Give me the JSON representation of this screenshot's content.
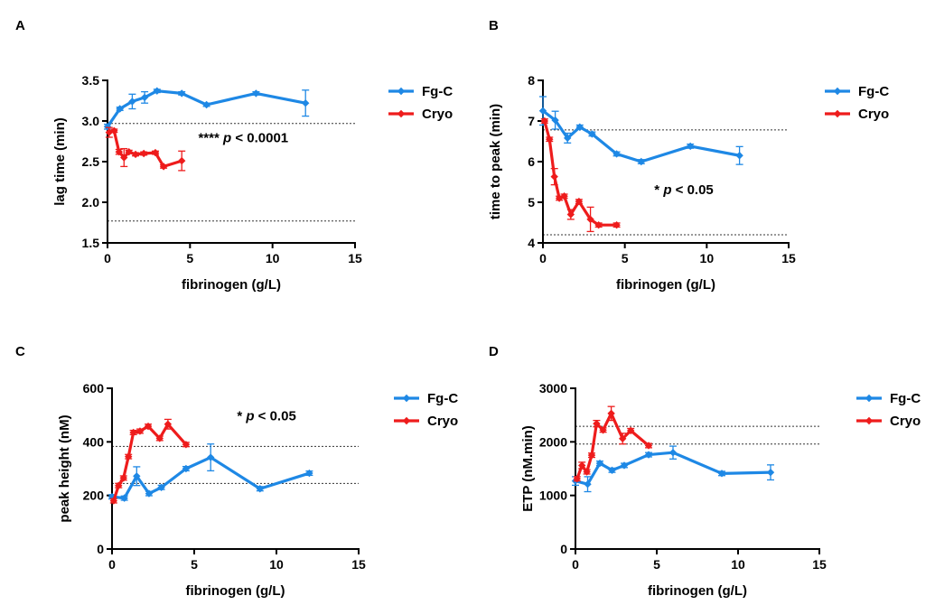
{
  "colors": {
    "fgc": "#1e88e5",
    "cryo": "#ee1c1c"
  },
  "chart_data": [
    {
      "panel": "A",
      "type": "line",
      "xlabel": "fibrinogen (g/L)",
      "ylabel": "lag time (min)",
      "xlim": [
        0,
        15
      ],
      "ylim": [
        1.5,
        3.5
      ],
      "xticks": [
        0,
        5,
        10,
        15
      ],
      "yticks": [
        1.5,
        2.0,
        2.5,
        3.0,
        3.5
      ],
      "ytick_labels": [
        "1.5",
        "2.0",
        "2.5",
        "3.0",
        "3.5"
      ],
      "reference_lines": [
        2.97,
        1.77
      ],
      "annotation": {
        "stars": "****",
        "p": "p",
        "rest": " < 0.0001",
        "x": 5.5,
        "y": 2.74
      },
      "legend": "right",
      "series": [
        {
          "name": "Fg-C",
          "color": "#1e88e5",
          "x": [
            0,
            0.75,
            1.5,
            2.25,
            3,
            4.5,
            6,
            9,
            12
          ],
          "y": [
            2.93,
            3.15,
            3.24,
            3.29,
            3.37,
            3.34,
            3.2,
            3.34,
            3.22
          ],
          "err": [
            0.03,
            0.02,
            0.09,
            0.07,
            0.02,
            0.02,
            0.02,
            0.02,
            0.16
          ]
        },
        {
          "name": "Cryo",
          "color": "#ee1c1c",
          "x": [
            0.1,
            0.4,
            0.7,
            1.0,
            1.3,
            1.7,
            2.2,
            2.9,
            3.4,
            4.5
          ],
          "y": [
            2.86,
            2.88,
            2.62,
            2.55,
            2.62,
            2.59,
            2.6,
            2.61,
            2.44,
            2.51
          ],
          "err": [
            0.06,
            0.02,
            0.03,
            0.11,
            0.02,
            0.02,
            0.02,
            0.02,
            0.02,
            0.12
          ]
        }
      ]
    },
    {
      "panel": "B",
      "type": "line",
      "xlabel": "fibrinogen (g/L)",
      "ylabel": "time to peak (min)",
      "xlim": [
        0,
        15
      ],
      "ylim": [
        4,
        8
      ],
      "xticks": [
        0,
        5,
        10,
        15
      ],
      "yticks": [
        4,
        5,
        6,
        7,
        8
      ],
      "ytick_labels": [
        "4",
        "5",
        "6",
        "7",
        "8"
      ],
      "reference_lines": [
        6.78,
        4.2
      ],
      "annotation": {
        "stars": "*",
        "p": "p",
        "rest": " < 0.05",
        "x": 6.8,
        "y": 5.2
      },
      "legend": "right",
      "series": [
        {
          "name": "Fg-C",
          "color": "#1e88e5",
          "x": [
            0,
            0.75,
            1.5,
            2.25,
            3,
            4.5,
            6,
            9,
            12
          ],
          "y": [
            7.25,
            7.02,
            6.58,
            6.85,
            6.68,
            6.19,
            6.0,
            6.38,
            6.15
          ],
          "err": [
            0.35,
            0.22,
            0.12,
            0.05,
            0.05,
            0.05,
            0.05,
            0.05,
            0.22
          ]
        },
        {
          "name": "Cryo",
          "color": "#ee1c1c",
          "x": [
            0.1,
            0.4,
            0.7,
            1.0,
            1.3,
            1.7,
            2.2,
            2.9,
            3.4,
            4.5
          ],
          "y": [
            7.0,
            6.55,
            5.63,
            5.1,
            5.15,
            4.7,
            5.02,
            4.58,
            4.44,
            4.44
          ],
          "err": [
            0.05,
            0.05,
            0.2,
            0.05,
            0.05,
            0.12,
            0.05,
            0.3,
            0.05,
            0.05
          ]
        }
      ]
    },
    {
      "panel": "C",
      "type": "line",
      "xlabel": "fibrinogen (g/L)",
      "ylabel": "peak height (nM)",
      "xlim": [
        0,
        15
      ],
      "ylim": [
        0,
        600
      ],
      "xticks": [
        0,
        5,
        10,
        15
      ],
      "yticks": [
        0,
        200,
        400,
        600
      ],
      "ytick_labels": [
        "0",
        "200",
        "400",
        "600"
      ],
      "reference_lines": [
        383,
        245
      ],
      "annotation": {
        "stars": "*",
        "p": "p",
        "rest": " < 0.05",
        "x": 7.6,
        "y": 480
      },
      "legend": "right",
      "series": [
        {
          "name": "Fg-C",
          "color": "#1e88e5",
          "x": [
            0,
            0.75,
            1.5,
            2.25,
            3,
            4.5,
            6,
            9,
            12
          ],
          "y": [
            195,
            190,
            272,
            207,
            230,
            300,
            342,
            225,
            283
          ],
          "err": [
            8,
            8,
            35,
            8,
            8,
            8,
            50,
            8,
            8
          ]
        },
        {
          "name": "Cryo",
          "color": "#ee1c1c",
          "x": [
            0.1,
            0.4,
            0.7,
            1.0,
            1.3,
            1.7,
            2.2,
            2.9,
            3.4,
            4.5
          ],
          "y": [
            180,
            237,
            265,
            345,
            435,
            440,
            458,
            413,
            466,
            390
          ],
          "err": [
            8,
            8,
            8,
            8,
            8,
            8,
            8,
            8,
            18,
            8
          ]
        }
      ]
    },
    {
      "panel": "D",
      "type": "line",
      "xlabel": "fibrinogen (g/L)",
      "ylabel": "ETP (nM.min)",
      "xlim": [
        0,
        15
      ],
      "ylim": [
        0,
        3000
      ],
      "xticks": [
        0,
        5,
        10,
        15
      ],
      "yticks": [
        0,
        1000,
        2000,
        3000
      ],
      "ytick_labels": [
        "0",
        "1000",
        "2000",
        "3000"
      ],
      "reference_lines": [
        2290,
        1960
      ],
      "legend": "right",
      "series": [
        {
          "name": "Fg-C",
          "color": "#1e88e5",
          "x": [
            0,
            0.75,
            1.5,
            2.25,
            3,
            4.5,
            6,
            9,
            12
          ],
          "y": [
            1270,
            1210,
            1600,
            1470,
            1560,
            1760,
            1800,
            1410,
            1430
          ],
          "err": [
            80,
            140,
            40,
            40,
            40,
            40,
            120,
            40,
            140
          ]
        },
        {
          "name": "Cryo",
          "color": "#ee1c1c",
          "x": [
            0.1,
            0.4,
            0.7,
            1.0,
            1.3,
            1.7,
            2.2,
            2.9,
            3.4,
            4.5
          ],
          "y": [
            1310,
            1560,
            1440,
            1750,
            2340,
            2220,
            2530,
            2060,
            2210,
            1930
          ],
          "err": [
            40,
            60,
            40,
            40,
            60,
            40,
            130,
            100,
            40,
            40
          ]
        }
      ]
    }
  ]
}
